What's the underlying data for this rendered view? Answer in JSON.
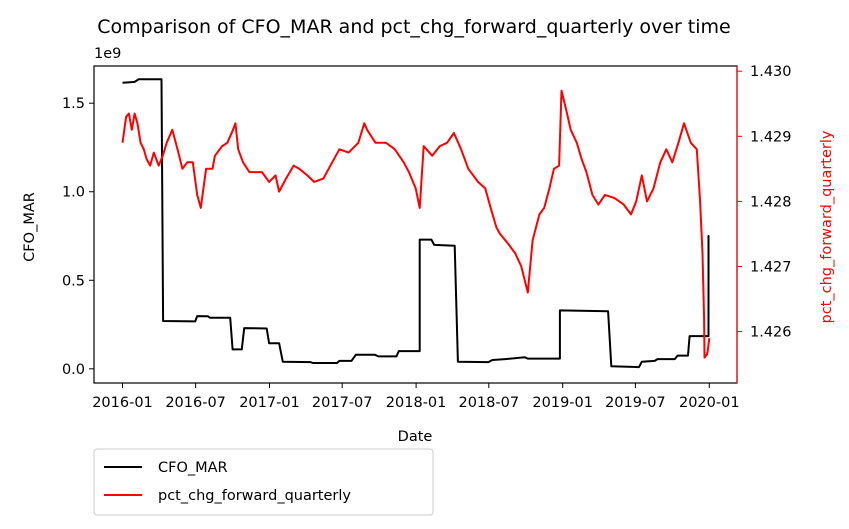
{
  "chart_data": {
    "type": "line",
    "title": "Comparison of CFO_MAR and pct_chg_forward_quarterly over time",
    "xlabel": "Date",
    "ylabel_left": "CFO_MAR",
    "ylabel_right": "pct_chg_forward_quarterly",
    "left_axis_offset": "1e9",
    "left_axis_scale": 1000000000,
    "xlim": [
      "2015-10-22",
      "2020-03-10"
    ],
    "ylim_left": [
      -0.08,
      1.71
    ],
    "ylim_right": [
      1.42521,
      1.43008
    ],
    "x_ticks": [
      {
        "date": "2016-01-01",
        "label": "2016-01"
      },
      {
        "date": "2016-07-01",
        "label": "2016-07"
      },
      {
        "date": "2017-01-01",
        "label": "2017-01"
      },
      {
        "date": "2017-07-01",
        "label": "2017-07"
      },
      {
        "date": "2018-01-01",
        "label": "2018-01"
      },
      {
        "date": "2018-07-01",
        "label": "2018-07"
      },
      {
        "date": "2019-01-01",
        "label": "2019-01"
      },
      {
        "date": "2019-07-01",
        "label": "2019-07"
      },
      {
        "date": "2020-01-01",
        "label": "2020-01"
      }
    ],
    "y_ticks_left": [
      {
        "value": 0.0,
        "label": "0.0"
      },
      {
        "value": 0.5,
        "label": "0.5"
      },
      {
        "value": 1.0,
        "label": "1.0"
      },
      {
        "value": 1.5,
        "label": "1.5"
      }
    ],
    "y_ticks_right": [
      {
        "value": 1.426,
        "label": "1.426"
      },
      {
        "value": 1.427,
        "label": "1.427"
      },
      {
        "value": 1.428,
        "label": "1.428"
      },
      {
        "value": 1.429,
        "label": "1.429"
      },
      {
        "value": 1.43,
        "label": "1.430"
      }
    ],
    "grid": false,
    "legend_position": "below-left",
    "series": [
      {
        "name": "CFO_MAR",
        "axis": "left",
        "color": "#000000",
        "points": [
          [
            "2016-01-01",
            1.615
          ],
          [
            "2016-01-31",
            1.62
          ],
          [
            "2016-02-10",
            1.635
          ],
          [
            "2016-04-07",
            1.635
          ],
          [
            "2016-04-11",
            0.27
          ],
          [
            "2016-06-30",
            0.268
          ],
          [
            "2016-07-05",
            0.298
          ],
          [
            "2016-07-31",
            0.297
          ],
          [
            "2016-08-06",
            0.288
          ],
          [
            "2016-09-25",
            0.288
          ],
          [
            "2016-10-01",
            0.11
          ],
          [
            "2016-10-24",
            0.11
          ],
          [
            "2016-10-30",
            0.23
          ],
          [
            "2016-12-25",
            0.228
          ],
          [
            "2016-12-31",
            0.145
          ],
          [
            "2017-01-25",
            0.145
          ],
          [
            "2017-02-03",
            0.04
          ],
          [
            "2017-04-13",
            0.038
          ],
          [
            "2017-04-19",
            0.033
          ],
          [
            "2017-06-18",
            0.033
          ],
          [
            "2017-06-24",
            0.045
          ],
          [
            "2017-07-24",
            0.045
          ],
          [
            "2017-08-04",
            0.08
          ],
          [
            "2017-09-20",
            0.08
          ],
          [
            "2017-09-29",
            0.07
          ],
          [
            "2017-11-13",
            0.07
          ],
          [
            "2017-11-19",
            0.1
          ],
          [
            "2017-12-25",
            0.1
          ],
          [
            "2018-01-10",
            0.1
          ],
          [
            "2018-01-10",
            0.73
          ],
          [
            "2018-02-08",
            0.73
          ],
          [
            "2018-02-15",
            0.7
          ],
          [
            "2018-04-07",
            0.695
          ],
          [
            "2018-04-15",
            0.04
          ],
          [
            "2018-06-30",
            0.038
          ],
          [
            "2018-07-10",
            0.05
          ],
          [
            "2018-08-11",
            0.055
          ],
          [
            "2018-09-29",
            0.065
          ],
          [
            "2018-10-06",
            0.058
          ],
          [
            "2018-12-25",
            0.058
          ],
          [
            "2018-12-25",
            0.33
          ],
          [
            "2019-04-24",
            0.325
          ],
          [
            "2019-05-02",
            0.015
          ],
          [
            "2019-07-10",
            0.01
          ],
          [
            "2019-07-17",
            0.04
          ],
          [
            "2019-08-18",
            0.045
          ],
          [
            "2019-08-25",
            0.055
          ],
          [
            "2019-10-07",
            0.055
          ],
          [
            "2019-10-14",
            0.075
          ],
          [
            "2019-11-09",
            0.075
          ],
          [
            "2019-11-13",
            0.185
          ],
          [
            "2019-12-27",
            0.185
          ],
          [
            "2019-12-30",
            0.185
          ],
          [
            "2019-12-30",
            0.75
          ],
          [
            "2020-01-01",
            0.75
          ]
        ]
      },
      {
        "name": "pct_chg_forward_quarterly",
        "axis": "right",
        "color": "#ff0000",
        "points": [
          [
            "2016-01-01",
            1.4289
          ],
          [
            "2016-01-10",
            1.4293
          ],
          [
            "2016-01-17",
            1.42935
          ],
          [
            "2016-01-24",
            1.4291
          ],
          [
            "2016-01-31",
            1.42935
          ],
          [
            "2016-02-07",
            1.4292
          ],
          [
            "2016-02-15",
            1.4289
          ],
          [
            "2016-02-23",
            1.4288
          ],
          [
            "2016-03-01",
            1.42865
          ],
          [
            "2016-03-10",
            1.42855
          ],
          [
            "2016-03-19",
            1.42875
          ],
          [
            "2016-03-31",
            1.42855
          ],
          [
            "2016-04-10",
            1.4287
          ],
          [
            "2016-04-20",
            1.4289
          ],
          [
            "2016-05-04",
            1.4291
          ],
          [
            "2016-05-17",
            1.4288
          ],
          [
            "2016-05-29",
            1.4285
          ],
          [
            "2016-06-10",
            1.4286
          ],
          [
            "2016-06-24",
            1.4286
          ],
          [
            "2016-07-05",
            1.4281
          ],
          [
            "2016-07-14",
            1.4279
          ],
          [
            "2016-07-27",
            1.4285
          ],
          [
            "2016-08-12",
            1.4285
          ],
          [
            "2016-08-18",
            1.4287
          ],
          [
            "2016-09-05",
            1.42885
          ],
          [
            "2016-09-18",
            1.4289
          ],
          [
            "2016-10-02",
            1.4291
          ],
          [
            "2016-10-08",
            1.4292
          ],
          [
            "2016-10-15",
            1.4288
          ],
          [
            "2016-10-27",
            1.4286
          ],
          [
            "2016-11-12",
            1.42845
          ],
          [
            "2016-11-28",
            1.42845
          ],
          [
            "2016-12-13",
            1.42845
          ],
          [
            "2016-12-31",
            1.4283
          ],
          [
            "2017-01-16",
            1.4284
          ],
          [
            "2017-01-25",
            1.42815
          ],
          [
            "2017-02-11",
            1.42835
          ],
          [
            "2017-03-02",
            1.42855
          ],
          [
            "2017-03-16",
            1.4285
          ],
          [
            "2017-04-05",
            1.4284
          ],
          [
            "2017-04-22",
            1.4283
          ],
          [
            "2017-05-15",
            1.42835
          ],
          [
            "2017-06-06",
            1.4286
          ],
          [
            "2017-06-24",
            1.4288
          ],
          [
            "2017-07-17",
            1.42875
          ],
          [
            "2017-08-10",
            1.4289
          ],
          [
            "2017-08-25",
            1.4292
          ],
          [
            "2017-09-01",
            1.4291
          ],
          [
            "2017-09-22",
            1.4289
          ],
          [
            "2017-10-18",
            1.4289
          ],
          [
            "2017-11-09",
            1.4288
          ],
          [
            "2017-12-01",
            1.4286
          ],
          [
            "2017-12-14",
            1.42845
          ],
          [
            "2017-12-31",
            1.4282
          ],
          [
            "2018-01-10",
            1.4279
          ],
          [
            "2018-01-20",
            1.42885
          ],
          [
            "2018-02-10",
            1.4287
          ],
          [
            "2018-03-01",
            1.42885
          ],
          [
            "2018-03-19",
            1.4289
          ],
          [
            "2018-04-05",
            1.42905
          ],
          [
            "2018-04-23",
            1.4288
          ],
          [
            "2018-05-11",
            1.4285
          ],
          [
            "2018-06-04",
            1.4283
          ],
          [
            "2018-06-22",
            1.4282
          ],
          [
            "2018-07-08",
            1.42785
          ],
          [
            "2018-07-20",
            1.4276
          ],
          [
            "2018-07-29",
            1.4275
          ],
          [
            "2018-08-18",
            1.42735
          ],
          [
            "2018-09-05",
            1.4272
          ],
          [
            "2018-09-20",
            1.427
          ],
          [
            "2018-10-06",
            1.4266
          ],
          [
            "2018-10-18",
            1.4274
          ],
          [
            "2018-11-04",
            1.4278
          ],
          [
            "2018-11-16",
            1.4279
          ],
          [
            "2018-11-29",
            1.4282
          ],
          [
            "2018-12-10",
            1.4285
          ],
          [
            "2018-12-23",
            1.42855
          ],
          [
            "2018-12-29",
            1.4297
          ],
          [
            "2019-01-10",
            1.4294
          ],
          [
            "2019-01-21",
            1.4291
          ],
          [
            "2019-02-05",
            1.4289
          ],
          [
            "2019-02-17",
            1.42865
          ],
          [
            "2019-03-01",
            1.42845
          ],
          [
            "2019-03-16",
            1.4281
          ],
          [
            "2019-03-31",
            1.42795
          ],
          [
            "2019-04-16",
            1.4281
          ],
          [
            "2019-05-10",
            1.42805
          ],
          [
            "2019-06-02",
            1.42795
          ],
          [
            "2019-06-20",
            1.4278
          ],
          [
            "2019-07-03",
            1.428
          ],
          [
            "2019-07-17",
            1.4284
          ],
          [
            "2019-07-30",
            1.428
          ],
          [
            "2019-08-15",
            1.4282
          ],
          [
            "2019-09-01",
            1.4286
          ],
          [
            "2019-09-16",
            1.4288
          ],
          [
            "2019-10-01",
            1.4286
          ],
          [
            "2019-10-16",
            1.4289
          ],
          [
            "2019-10-30",
            1.4292
          ],
          [
            "2019-11-16",
            1.4289
          ],
          [
            "2019-12-01",
            1.4288
          ],
          [
            "2019-12-09",
            1.428
          ],
          [
            "2019-12-15",
            1.4272
          ],
          [
            "2019-12-19",
            1.4262
          ],
          [
            "2019-12-20",
            1.4256
          ],
          [
            "2019-12-26",
            1.42565
          ],
          [
            "2019-12-28",
            1.4257
          ],
          [
            "2020-01-01",
            1.4259
          ]
        ]
      }
    ]
  }
}
